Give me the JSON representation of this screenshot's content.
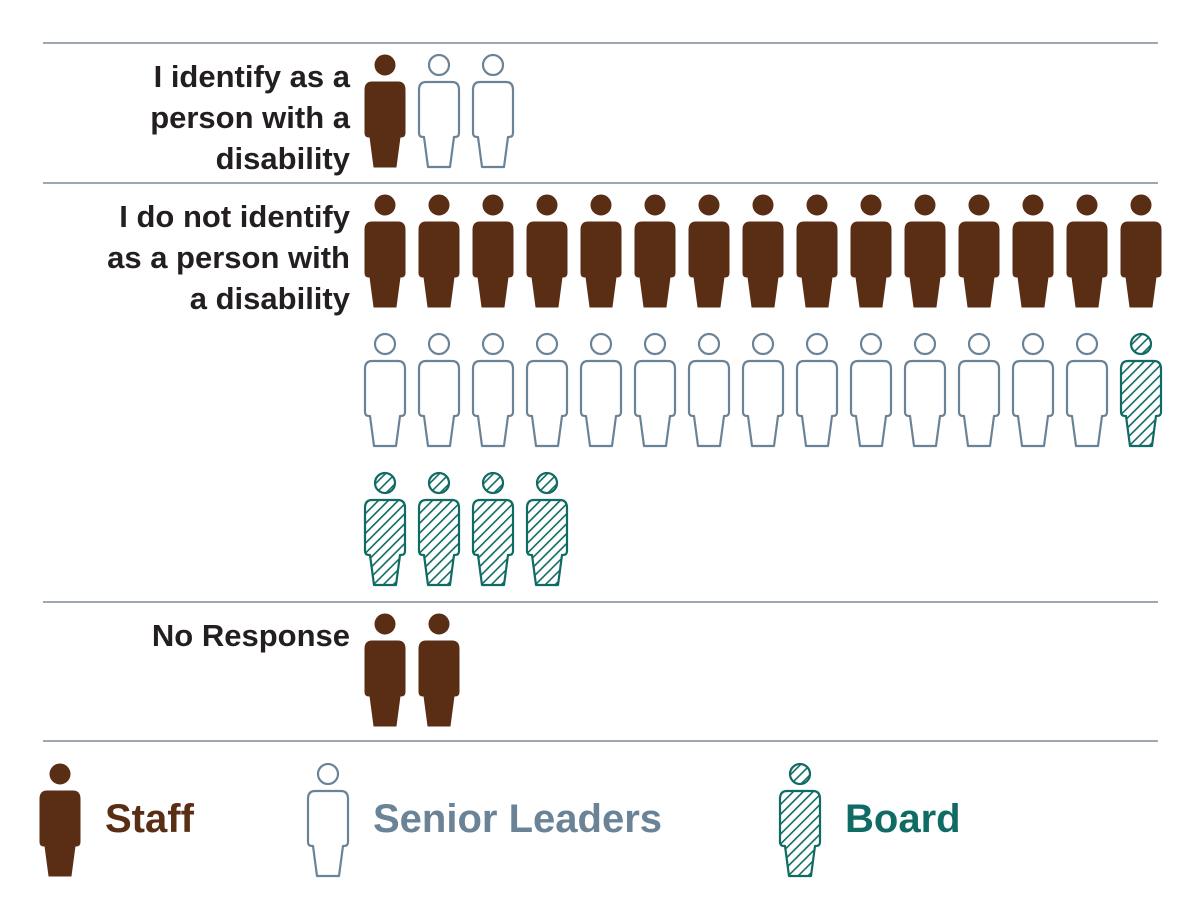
{
  "chart_data": {
    "type": "pictogram",
    "colors": {
      "staff": "#5a2d15",
      "senior_leaders": "#6b8397",
      "board": "#0f6b63",
      "divider": "#7d8c98",
      "label": "#231f20"
    },
    "legend": [
      {
        "key": "staff",
        "label": "Staff"
      },
      {
        "key": "senior_leaders",
        "label": "Senior Leaders"
      },
      {
        "key": "board",
        "label": "Board"
      }
    ],
    "rows": [
      {
        "label_lines": [
          "I identify as a",
          "person with a",
          "disability"
        ],
        "counts": {
          "staff": 1,
          "senior_leaders": 2,
          "board": 0
        }
      },
      {
        "label_lines": [
          "I do not identify",
          "as a person with",
          "a disability"
        ],
        "counts": {
          "staff": 15,
          "senior_leaders": 14,
          "board": 5
        }
      },
      {
        "label_lines": [
          "No Response"
        ],
        "counts": {
          "staff": 2,
          "senior_leaders": 0,
          "board": 0
        }
      }
    ]
  }
}
